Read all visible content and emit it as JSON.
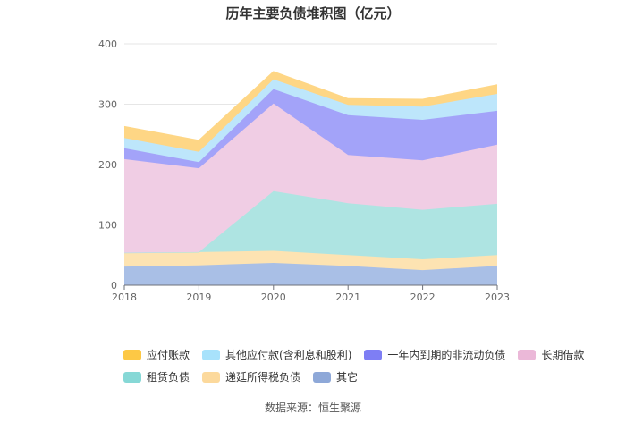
{
  "chart_data": {
    "type": "area",
    "title": "历年主要负债堆积图（亿元）",
    "source": "数据来源：恒生聚源",
    "categories": [
      "2018",
      "2019",
      "2020",
      "2021",
      "2022",
      "2023"
    ],
    "y_ticks": [
      "0",
      "100",
      "200",
      "300",
      "400"
    ],
    "ylim": [
      0,
      400
    ],
    "grid": true,
    "legend_position": "bottom",
    "series": [
      {
        "name": "其它",
        "color": "#a9bfe6",
        "values": [
          31,
          33,
          37,
          32,
          25,
          32
        ]
      },
      {
        "name": "递延所得税负债",
        "color": "#fde3b2",
        "values": [
          23,
          22,
          20,
          18,
          18,
          18
        ]
      },
      {
        "name": "租赁负债",
        "color": "#aee4e2",
        "values": [
          0,
          0,
          99,
          86,
          82,
          85
        ]
      },
      {
        "name": "长期借款",
        "color": "#f0cde4",
        "values": [
          155,
          139,
          145,
          80,
          82,
          98
        ]
      },
      {
        "name": "一年内到期的非流动负债",
        "color": "#a3a3f9",
        "values": [
          18,
          10,
          24,
          66,
          67,
          56
        ]
      },
      {
        "name": "其他应付款(含利息和股利)",
        "color": "#bde6fb",
        "values": [
          17,
          17,
          16,
          17,
          22,
          28
        ]
      },
      {
        "name": "应付账款",
        "color": "#fed685",
        "values": [
          19,
          19,
          13,
          10,
          12,
          15
        ]
      }
    ],
    "legend_rows": [
      [
        {
          "label": "应付账款",
          "color": "#fdc845"
        },
        {
          "label": "其他应付款(含利息和股利)",
          "color": "#a8e2fb"
        },
        {
          "label": "一年内到期的非流动负债",
          "color": "#7e7ef4"
        },
        {
          "label": "长期借款",
          "color": "#ebb8d8"
        }
      ],
      [
        {
          "label": "租赁负债",
          "color": "#86d8d6"
        },
        {
          "label": "递延所得税负债",
          "color": "#fcd99c"
        },
        {
          "label": "其它",
          "color": "#8ea8d8"
        }
      ]
    ]
  }
}
